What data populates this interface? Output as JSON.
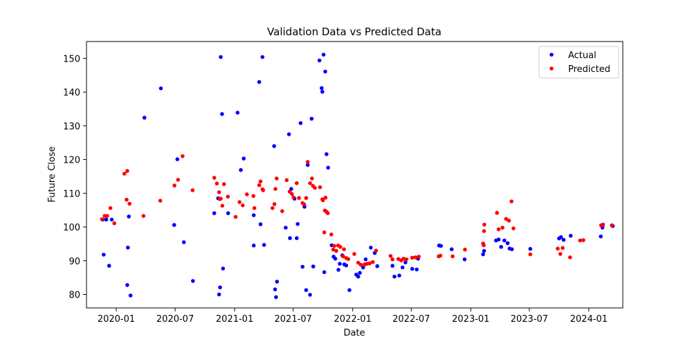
{
  "chart_data": {
    "type": "scatter",
    "title": "Validation Data vs Predicted Data",
    "xlabel": "Date",
    "ylabel": "Future Close",
    "xlim": [
      "2019-10-01",
      "2024-04-15"
    ],
    "ylim": [
      76,
      155
    ],
    "x_ticks": [
      "2020-01",
      "2020-07",
      "2021-01",
      "2021-07",
      "2022-01",
      "2022-07",
      "2023-01",
      "2023-07",
      "2024-01"
    ],
    "y_ticks": [
      80,
      90,
      100,
      110,
      120,
      130,
      140,
      150
    ],
    "grid": false,
    "legend_position": "top-right",
    "series": [
      {
        "name": "Actual",
        "color": "#0000ff",
        "points": [
          [
            "2019-11-20",
            102.2
          ],
          [
            "2019-11-23",
            91.8
          ],
          [
            "2019-12-01",
            102.2
          ],
          [
            "2019-12-10",
            88.5
          ],
          [
            "2019-12-18",
            102.2
          ],
          [
            "2020-02-04",
            82.8
          ],
          [
            "2020-02-06",
            93.9
          ],
          [
            "2020-02-09",
            103.1
          ],
          [
            "2020-02-14",
            79.7
          ],
          [
            "2020-03-28",
            132.4
          ],
          [
            "2020-05-18",
            141.1
          ],
          [
            "2020-06-28",
            100.6
          ],
          [
            "2020-07-08",
            120.1
          ],
          [
            "2020-07-28",
            95.5
          ],
          [
            "2020-08-25",
            84.0
          ],
          [
            "2020-10-30",
            104.1
          ],
          [
            "2020-11-11",
            108.5
          ],
          [
            "2020-11-14",
            80.0
          ],
          [
            "2020-11-17",
            82.1
          ],
          [
            "2020-11-19",
            150.4
          ],
          [
            "2020-11-23",
            133.5
          ],
          [
            "2020-11-26",
            87.7
          ],
          [
            "2020-12-12",
            104.1
          ],
          [
            "2021-01-10",
            133.9
          ],
          [
            "2021-01-20",
            116.9
          ],
          [
            "2021-01-29",
            120.3
          ],
          [
            "2021-03-01",
            94.5
          ],
          [
            "2021-03-01",
            103.5
          ],
          [
            "2021-03-18",
            143.0
          ],
          [
            "2021-03-22",
            100.8
          ],
          [
            "2021-03-28",
            150.4
          ],
          [
            "2021-04-02",
            94.7
          ],
          [
            "2021-05-03",
            124.0
          ],
          [
            "2021-05-06",
            81.5
          ],
          [
            "2021-05-09",
            79.2
          ],
          [
            "2021-05-12",
            83.8
          ],
          [
            "2021-06-08",
            99.8
          ],
          [
            "2021-06-18",
            127.5
          ],
          [
            "2021-06-21",
            96.7
          ],
          [
            "2021-06-25",
            111.3
          ],
          [
            "2021-07-05",
            108.4
          ],
          [
            "2021-07-12",
            96.7
          ],
          [
            "2021-07-15",
            100.9
          ],
          [
            "2021-07-24",
            130.8
          ],
          [
            "2021-07-30",
            88.2
          ],
          [
            "2021-08-05",
            106.0
          ],
          [
            "2021-08-10",
            81.3
          ],
          [
            "2021-08-15",
            118.4
          ],
          [
            "2021-08-22",
            79.9
          ],
          [
            "2021-08-27",
            132.1
          ],
          [
            "2021-09-01",
            88.3
          ],
          [
            "2021-09-20",
            149.4
          ],
          [
            "2021-09-27",
            141.2
          ],
          [
            "2021-09-29",
            140.1
          ],
          [
            "2021-10-03",
            151.1
          ],
          [
            "2021-10-05",
            86.6
          ],
          [
            "2021-10-08",
            146.1
          ],
          [
            "2021-10-12",
            121.6
          ],
          [
            "2021-10-17",
            117.6
          ],
          [
            "2021-10-28",
            94.6
          ],
          [
            "2021-11-03",
            91.2
          ],
          [
            "2021-11-08",
            90.6
          ],
          [
            "2021-11-18",
            87.3
          ],
          [
            "2021-11-22",
            89.1
          ],
          [
            "2021-11-30",
            91.6
          ],
          [
            "2021-12-06",
            88.9
          ],
          [
            "2021-12-12",
            88.6
          ],
          [
            "2021-12-22",
            81.3
          ],
          [
            "2022-01-12",
            85.9
          ],
          [
            "2022-01-18",
            85.3
          ],
          [
            "2022-01-23",
            86.4
          ],
          [
            "2022-02-02",
            88.0
          ],
          [
            "2022-02-10",
            90.4
          ],
          [
            "2022-02-26",
            93.9
          ],
          [
            "2022-03-10",
            92.3
          ],
          [
            "2022-03-18",
            88.4
          ],
          [
            "2022-05-04",
            88.5
          ],
          [
            "2022-05-10",
            85.3
          ],
          [
            "2022-05-25",
            85.6
          ],
          [
            "2022-06-04",
            88.0
          ],
          [
            "2022-06-13",
            89.5
          ],
          [
            "2022-07-04",
            87.6
          ],
          [
            "2022-07-18",
            87.4
          ],
          [
            "2022-07-22",
            90.6
          ],
          [
            "2022-09-25",
            94.5
          ],
          [
            "2022-10-01",
            94.4
          ],
          [
            "2022-11-03",
            93.4
          ],
          [
            "2022-12-13",
            90.4
          ],
          [
            "2023-02-08",
            91.9
          ],
          [
            "2023-02-11",
            92.9
          ],
          [
            "2023-03-20",
            96.0
          ],
          [
            "2023-03-28",
            96.3
          ],
          [
            "2023-04-05",
            94.1
          ],
          [
            "2023-04-15",
            96.0
          ],
          [
            "2023-04-25",
            95.2
          ],
          [
            "2023-05-01",
            93.6
          ],
          [
            "2023-05-08",
            93.4
          ],
          [
            "2023-07-04",
            93.5
          ],
          [
            "2023-10-01",
            96.6
          ],
          [
            "2023-10-07",
            97.0
          ],
          [
            "2023-10-15",
            96.2
          ],
          [
            "2023-11-06",
            97.4
          ],
          [
            "2024-02-07",
            97.2
          ],
          [
            "2024-02-12",
            99.8
          ],
          [
            "2024-03-15",
            100.3
          ]
        ]
      },
      {
        "name": "Predicted",
        "color": "#ff0000",
        "points": [
          [
            "2019-11-18",
            102.3
          ],
          [
            "2019-11-26",
            103.3
          ],
          [
            "2019-12-04",
            103.3
          ],
          [
            "2019-12-14",
            105.6
          ],
          [
            "2019-12-26",
            101.1
          ],
          [
            "2020-01-26",
            115.8
          ],
          [
            "2020-02-02",
            108.1
          ],
          [
            "2020-02-04",
            116.6
          ],
          [
            "2020-02-11",
            106.9
          ],
          [
            "2020-03-25",
            103.3
          ],
          [
            "2020-05-16",
            107.8
          ],
          [
            "2020-06-29",
            112.3
          ],
          [
            "2020-07-10",
            114.0
          ],
          [
            "2020-07-24",
            121.0
          ],
          [
            "2020-08-24",
            110.9
          ],
          [
            "2020-10-30",
            114.6
          ],
          [
            "2020-11-07",
            112.9
          ],
          [
            "2020-11-14",
            110.3
          ],
          [
            "2020-11-16",
            108.3
          ],
          [
            "2020-11-19",
            108.4
          ],
          [
            "2020-11-24",
            106.3
          ],
          [
            "2020-11-29",
            112.7
          ],
          [
            "2020-12-11",
            109.0
          ],
          [
            "2021-01-04",
            103.0
          ],
          [
            "2021-01-16",
            107.4
          ],
          [
            "2021-01-26",
            106.4
          ],
          [
            "2021-02-08",
            109.7
          ],
          [
            "2021-02-28",
            109.2
          ],
          [
            "2021-03-03",
            105.6
          ],
          [
            "2021-03-18",
            112.4
          ],
          [
            "2021-03-22",
            113.5
          ],
          [
            "2021-03-28",
            111.2
          ],
          [
            "2021-03-30",
            110.9
          ],
          [
            "2021-04-28",
            105.6
          ],
          [
            "2021-05-04",
            106.8
          ],
          [
            "2021-05-07",
            111.3
          ],
          [
            "2021-05-11",
            114.4
          ],
          [
            "2021-05-28",
            104.7
          ],
          [
            "2021-06-11",
            113.9
          ],
          [
            "2021-06-20",
            110.5
          ],
          [
            "2021-06-27",
            109.8
          ],
          [
            "2021-07-02",
            108.8
          ],
          [
            "2021-07-12",
            113.0
          ],
          [
            "2021-07-19",
            108.6
          ],
          [
            "2021-07-30",
            107.1
          ],
          [
            "2021-08-04",
            106.7
          ],
          [
            "2021-08-10",
            108.6
          ],
          [
            "2021-08-15",
            119.3
          ],
          [
            "2021-08-22",
            113.0
          ],
          [
            "2021-08-28",
            114.4
          ],
          [
            "2021-08-31",
            112.2
          ],
          [
            "2021-09-06",
            111.6
          ],
          [
            "2021-09-22",
            111.8
          ],
          [
            "2021-09-29",
            108.2
          ],
          [
            "2021-10-01",
            107.9
          ],
          [
            "2021-10-05",
            98.4
          ],
          [
            "2021-10-07",
            104.9
          ],
          [
            "2021-10-09",
            108.7
          ],
          [
            "2021-10-12",
            104.5
          ],
          [
            "2021-10-16",
            104.1
          ],
          [
            "2021-10-27",
            97.8
          ],
          [
            "2021-11-02",
            93.3
          ],
          [
            "2021-11-05",
            94.4
          ],
          [
            "2021-11-11",
            92.9
          ],
          [
            "2021-11-17",
            94.5
          ],
          [
            "2021-11-24",
            94.1
          ],
          [
            "2021-12-02",
            91.3
          ],
          [
            "2021-12-05",
            93.4
          ],
          [
            "2021-12-12",
            90.8
          ],
          [
            "2021-12-18",
            90.5
          ],
          [
            "2022-01-06",
            92.0
          ],
          [
            "2022-01-18",
            89.4
          ],
          [
            "2022-01-26",
            88.8
          ],
          [
            "2022-02-07",
            88.9
          ],
          [
            "2022-02-14",
            89.1
          ],
          [
            "2022-02-22",
            89.2
          ],
          [
            "2022-03-04",
            89.6
          ],
          [
            "2022-03-14",
            93.0
          ],
          [
            "2022-04-28",
            91.4
          ],
          [
            "2022-05-04",
            90.4
          ],
          [
            "2022-05-22",
            90.5
          ],
          [
            "2022-05-31",
            90.1
          ],
          [
            "2022-06-07",
            90.6
          ],
          [
            "2022-06-16",
            90.4
          ],
          [
            "2022-07-04",
            90.9
          ],
          [
            "2022-07-14",
            91.0
          ],
          [
            "2022-07-24",
            91.2
          ],
          [
            "2022-09-24",
            91.3
          ],
          [
            "2022-09-29",
            91.5
          ],
          [
            "2022-11-06",
            91.3
          ],
          [
            "2022-12-14",
            93.3
          ],
          [
            "2023-02-08",
            95.1
          ],
          [
            "2023-02-10",
            94.6
          ],
          [
            "2023-02-11",
            98.8
          ],
          [
            "2023-02-12",
            100.7
          ],
          [
            "2023-03-23",
            104.2
          ],
          [
            "2023-03-28",
            99.3
          ],
          [
            "2023-04-09",
            99.8
          ],
          [
            "2023-04-20",
            102.4
          ],
          [
            "2023-04-29",
            101.9
          ],
          [
            "2023-05-07",
            107.6
          ],
          [
            "2023-05-13",
            99.6
          ],
          [
            "2023-07-04",
            91.9
          ],
          [
            "2023-09-27",
            93.6
          ],
          [
            "2023-10-05",
            92.0
          ],
          [
            "2023-10-12",
            93.8
          ],
          [
            "2023-11-04",
            91.0
          ],
          [
            "2023-12-05",
            96.0
          ],
          [
            "2023-12-15",
            96.1
          ],
          [
            "2024-02-08",
            100.5
          ],
          [
            "2024-02-14",
            100.7
          ],
          [
            "2024-03-12",
            100.5
          ]
        ]
      }
    ]
  }
}
